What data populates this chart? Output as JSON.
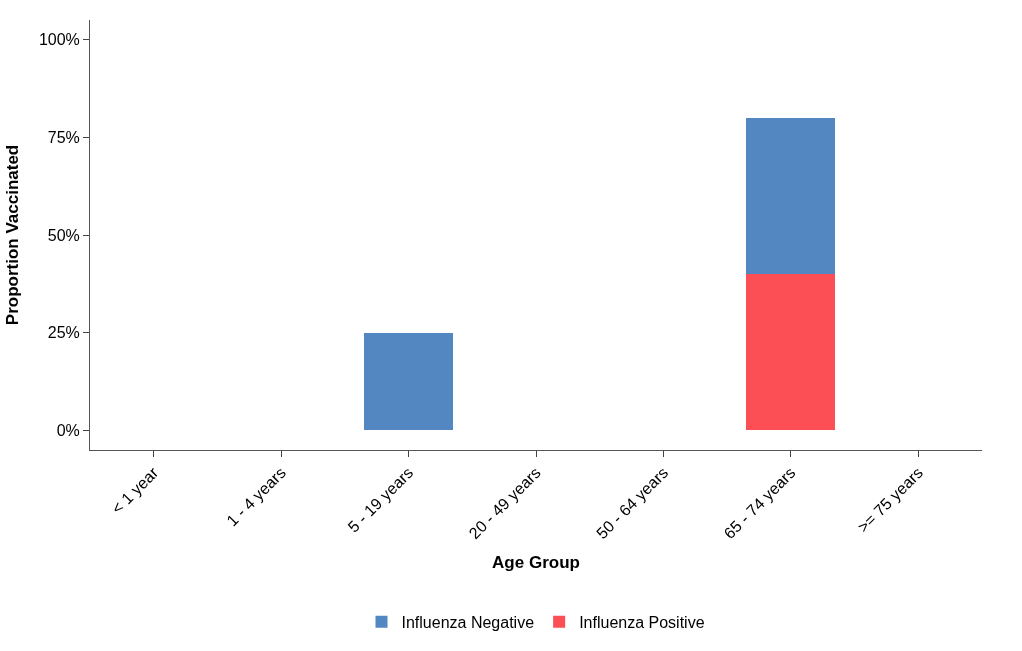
{
  "chart_data": {
    "type": "bar",
    "stacked": true,
    "xlabel": "Age Group",
    "ylabel": "Proportion Vaccinated",
    "categories": [
      "< 1 year",
      "1 - 4 years",
      "5 - 19 years",
      "20 - 49 years",
      "50 - 64 years",
      "65 - 74 years",
      ">= 75 years"
    ],
    "series": [
      {
        "name": "Influenza Positive",
        "color": "#fc4e55",
        "values": [
          null,
          null,
          null,
          null,
          null,
          40,
          null
        ]
      },
      {
        "name": "Influenza Negative",
        "color": "#5387c1",
        "values": [
          null,
          null,
          25,
          null,
          null,
          40,
          null
        ]
      }
    ],
    "ylim": [
      -5,
      105
    ],
    "yticks": [
      {
        "value": 0,
        "label": "0%"
      },
      {
        "value": 25,
        "label": "25%"
      },
      {
        "value": 50,
        "label": "50%"
      },
      {
        "value": 75,
        "label": "75%"
      },
      {
        "value": 100,
        "label": "100%"
      }
    ],
    "legend": "bottom"
  }
}
